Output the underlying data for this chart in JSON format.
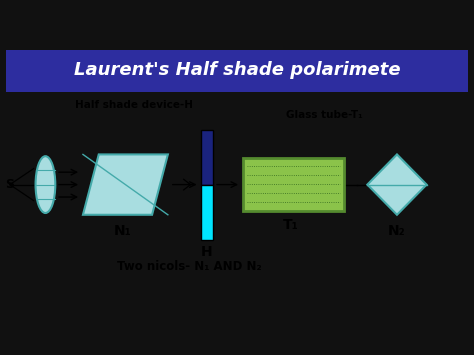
{
  "title": "Laurent's Half shade polarimete",
  "title_bg": "#2d2d9f",
  "title_color": "white",
  "title_fontsize": 13,
  "bg_color": "white",
  "black_bar_color": "#111111",
  "label_half_shade": "Half shade device-H",
  "label_glass_tube": "Glass tube-T₁",
  "label_N1": "N₁",
  "label_N2": "N₂",
  "label_H": "H",
  "label_T1": "T₁",
  "label_S": "S",
  "label_two_nicols": "Two nicols- N₁ AND N₂",
  "lens_color": "#a8dde0",
  "lens_edge": "#44aaaa",
  "nicol_color": "#a8dde0",
  "nicol_edge": "#44aaaa",
  "half_shade_blue": "#1a237e",
  "half_shade_cyan": "#00e5ff",
  "tube_fill": "#8bc34a",
  "tube_edge": "#558b2f",
  "tube_dot_color": "#33691e",
  "arrow_color": "black",
  "fig_width": 4.74,
  "fig_height": 3.55,
  "dpi": 100,
  "xlim": [
    0,
    12
  ],
  "ylim": [
    0,
    10
  ]
}
